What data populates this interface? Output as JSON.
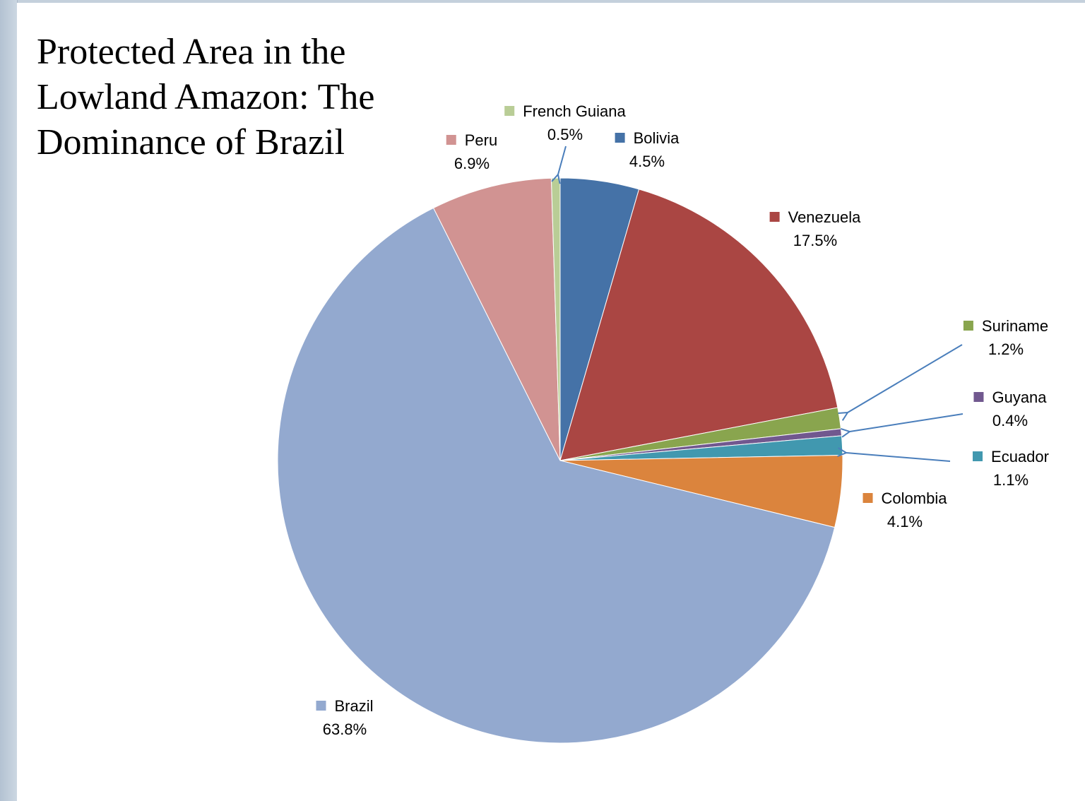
{
  "chart_data": {
    "type": "pie",
    "title": "Protected Area in the Lowland Amazon: The Dominance of Brazil",
    "slices": [
      {
        "name": "Bolivia",
        "value": 4.5,
        "label": "4.5%",
        "color": "#4572a7"
      },
      {
        "name": "Venezuela",
        "value": 17.5,
        "label": "17.5%",
        "color": "#aa4643"
      },
      {
        "name": "Suriname",
        "value": 1.2,
        "label": "1.2%",
        "color": "#89a54e"
      },
      {
        "name": "Guyana",
        "value": 0.4,
        "label": "0.4%",
        "color": "#71588f"
      },
      {
        "name": "Ecuador",
        "value": 1.1,
        "label": "1.1%",
        "color": "#4198af"
      },
      {
        "name": "Colombia",
        "value": 4.1,
        "label": "4.1%",
        "color": "#db843d"
      },
      {
        "name": "Brazil",
        "value": 63.8,
        "label": "63.8%",
        "color": "#93a9cf"
      },
      {
        "name": "Peru",
        "value": 6.9,
        "label": "6.9%",
        "color": "#d19392"
      },
      {
        "name": "French Guiana",
        "value": 0.5,
        "label": "0.5%",
        "color": "#b9cd96"
      }
    ],
    "leader_line_color": "#4a7ebb",
    "legend": "none"
  }
}
